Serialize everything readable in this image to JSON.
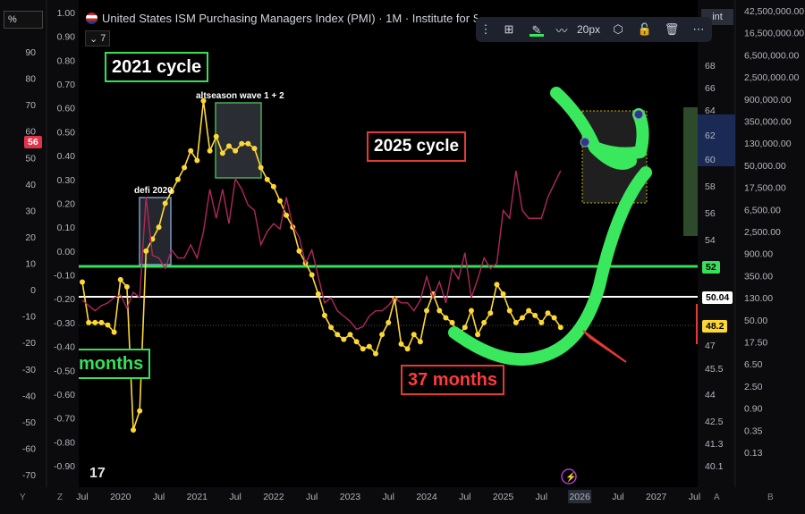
{
  "header": {
    "title": "United States ISM Purchasing Managers Index (PMI) · 1M · Institute for Sup",
    "indicator_count": "7",
    "percent_toggle": "%",
    "unit_label": "Unit"
  },
  "toolbar": {
    "stroke_width": "20px",
    "icons": [
      "drag-handle-icon",
      "group-icon",
      "pencil-icon",
      "line-style-icon",
      "settings-icon",
      "lock-icon",
      "trash-icon",
      "more-icon"
    ]
  },
  "annotations": {
    "cycle_2021": "2021 cycle",
    "cycle_2025": "2025 cycle",
    "months_left": "months",
    "months_37": "37 months",
    "altseason": "altseason wave 1 + 2",
    "defi": "defi 2020"
  },
  "badges": {
    "left_red": "56",
    "level_52": "52",
    "level_5004": "50.04",
    "current": "48.2"
  },
  "axes": {
    "x_ticks": [
      "Jul",
      "2020",
      "Jul",
      "2021",
      "Jul",
      "2022",
      "Jul",
      "2023",
      "Jul",
      "2024",
      "Jul",
      "2025",
      "Jul",
      "2026",
      "Jul",
      "2027",
      "Jul"
    ],
    "left_outer_ticks": [
      "90",
      "80",
      "70",
      "60",
      "50",
      "40",
      "30",
      "20",
      "10",
      "0",
      "-10",
      "-20",
      "-30",
      "-40",
      "-50",
      "-60",
      "-70"
    ],
    "left_inner_ticks": [
      "1.00",
      "0.90",
      "0.80",
      "0.70",
      "0.60",
      "0.50",
      "0.40",
      "0.30",
      "0.20",
      "0.10",
      "0.00",
      "-0.10",
      "-0.20",
      "-0.30",
      "-0.40",
      "-0.50",
      "-0.60",
      "-0.70",
      "-0.80",
      "-0.90"
    ],
    "pmi_ticks": [
      "68",
      "66",
      "64",
      "62",
      "60",
      "58",
      "56",
      "54",
      "52",
      "50",
      "47",
      "45.5",
      "44",
      "42.5",
      "41.3",
      "40.1"
    ],
    "right_ticks": [
      "42,500,000.00",
      "16,500,000.00",
      "6,500,000.00",
      "2,500,000.00",
      "900,000.00",
      "350,000.00",
      "130,000.00",
      "50,000.00",
      "17,500.00",
      "6,500.00",
      "2,500.00",
      "900.00",
      "350.00",
      "130.00",
      "50.00",
      "17.50",
      "6.50",
      "2.50",
      "0.90",
      "0.35",
      "0.13"
    ],
    "bottom_left_y": "Y",
    "bottom_left_z": "Z",
    "bottom_right_a": "A",
    "bottom_right_b": "B"
  },
  "chart_data": {
    "type": "line",
    "title": "United States ISM Purchasing Managers Index (PMI)",
    "xlabel": "",
    "ylabel": "",
    "series": [
      {
        "name": "",
        "color": "#fdd835",
        "x": [
          "2019-07",
          "2019-08",
          "2019-09",
          "2019-10",
          "2019-11",
          "2019-12",
          "2020-01",
          "2020-02",
          "2020-03",
          "2020-04",
          "2020-05",
          "2020-06",
          "2020-07",
          "2020-08",
          "2020-09",
          "2020-10",
          "2020-11",
          "2020-12",
          "2021-01",
          "2021-02",
          "2021-03",
          "2021-04",
          "2021-05",
          "2021-06",
          "2021-07",
          "2021-08",
          "2021-09",
          "2021-10",
          "2021-11",
          "2021-12",
          "2022-01",
          "2022-02",
          "2022-03",
          "2022-04",
          "2022-05",
          "2022-06",
          "2022-07",
          "2022-08",
          "2022-09",
          "2022-10",
          "2022-11",
          "2022-12",
          "2023-01",
          "2023-02",
          "2023-03",
          "2023-04",
          "2023-05",
          "2023-06",
          "2023-07",
          "2023-08",
          "2023-09",
          "2023-10",
          "2023-11",
          "2023-12",
          "2024-01",
          "2024-02",
          "2024-03",
          "2024-04",
          "2024-05",
          "2024-06",
          "2024-07",
          "2024-08",
          "2024-09",
          "2024-10",
          "2024-11",
          "2024-12",
          "2025-01",
          "2025-02",
          "2025-03",
          "2025-04",
          "2025-05",
          "2025-06",
          "2025-07",
          "2025-08",
          "2025-09",
          "2025-10"
        ],
        "values": [
          -0.13,
          -0.3,
          -0.3,
          -0.3,
          -0.31,
          -0.34,
          -0.12,
          -0.15,
          -0.75,
          -0.67,
          0.0,
          0.05,
          0.1,
          0.2,
          0.25,
          0.3,
          0.35,
          0.42,
          0.38,
          0.63,
          0.42,
          0.48,
          0.41,
          0.44,
          0.42,
          0.45,
          0.45,
          0.43,
          0.35,
          0.3,
          0.27,
          0.21,
          0.15,
          0.1,
          0.0,
          -0.05,
          -0.1,
          -0.18,
          -0.27,
          -0.32,
          -0.35,
          -0.37,
          -0.35,
          -0.38,
          -0.41,
          -0.4,
          -0.43,
          -0.35,
          -0.3,
          -0.2,
          -0.39,
          -0.41,
          -0.35,
          -0.38,
          -0.25,
          -0.18,
          -0.25,
          -0.28,
          -0.3,
          -0.35,
          -0.32,
          -0.25,
          -0.35,
          -0.3,
          -0.26,
          -0.14,
          -0.18,
          -0.25,
          -0.3,
          -0.28,
          -0.25,
          -0.27,
          -0.3,
          -0.26,
          -0.28,
          -0.32
        ]
      },
      {
        "name": "",
        "color": "#b0285a",
        "x": [
          "2019-07",
          "2019-08",
          "2019-09",
          "2019-10",
          "2019-11",
          "2019-12",
          "2020-01",
          "2020-02",
          "2020-03",
          "2020-04",
          "2020-05",
          "2020-06",
          "2020-07",
          "2020-08",
          "2020-09",
          "2020-10",
          "2020-11",
          "2020-12",
          "2021-01",
          "2021-02",
          "2021-03",
          "2021-04",
          "2021-05",
          "2021-06",
          "2021-07",
          "2021-08",
          "2021-09",
          "2021-10",
          "2021-11",
          "2021-12",
          "2022-01",
          "2022-02",
          "2022-03",
          "2022-04",
          "2022-05",
          "2022-06",
          "2022-07",
          "2022-08",
          "2022-09",
          "2022-10",
          "2022-11",
          "2022-12",
          "2023-01",
          "2023-02",
          "2023-03",
          "2023-04",
          "2023-05",
          "2023-06",
          "2023-07",
          "2023-08",
          "2023-09",
          "2023-10",
          "2023-11",
          "2023-12",
          "2024-01",
          "2024-02",
          "2024-03",
          "2024-04",
          "2024-05",
          "2024-06",
          "2024-07",
          "2024-08",
          "2024-09",
          "2024-10",
          "2024-11",
          "2024-12",
          "2025-01",
          "2025-02",
          "2025-03",
          "2025-04",
          "2025-05",
          "2025-06",
          "2025-07",
          "2025-08",
          "2025-09",
          "2025-10"
        ],
        "values": [
          -4,
          -6,
          -8,
          -6,
          -5,
          -3,
          -2,
          -7,
          -1,
          -3,
          35,
          13,
          12,
          8,
          15,
          12,
          12,
          17,
          12,
          22,
          38,
          27,
          38,
          25,
          42,
          38,
          32,
          30,
          17,
          22,
          25,
          23,
          35,
          24,
          20,
          10,
          15,
          5,
          -5,
          -3,
          -8,
          -10,
          -12,
          -15,
          -14,
          -10,
          -8,
          -8,
          -6,
          -3,
          -5,
          -5,
          -8,
          -4,
          5,
          -3,
          3,
          -5,
          8,
          4,
          14,
          -3,
          4,
          12,
          8,
          10,
          30,
          27,
          45,
          30,
          27,
          27,
          27,
          35,
          40,
          45
        ]
      }
    ],
    "left_axis_range": [
      -0.9,
      1.0
    ],
    "secondary_axis_range": [
      -70,
      90
    ],
    "reference_levels": [
      52,
      50.04
    ],
    "current_value": 48.2,
    "grid": false
  }
}
